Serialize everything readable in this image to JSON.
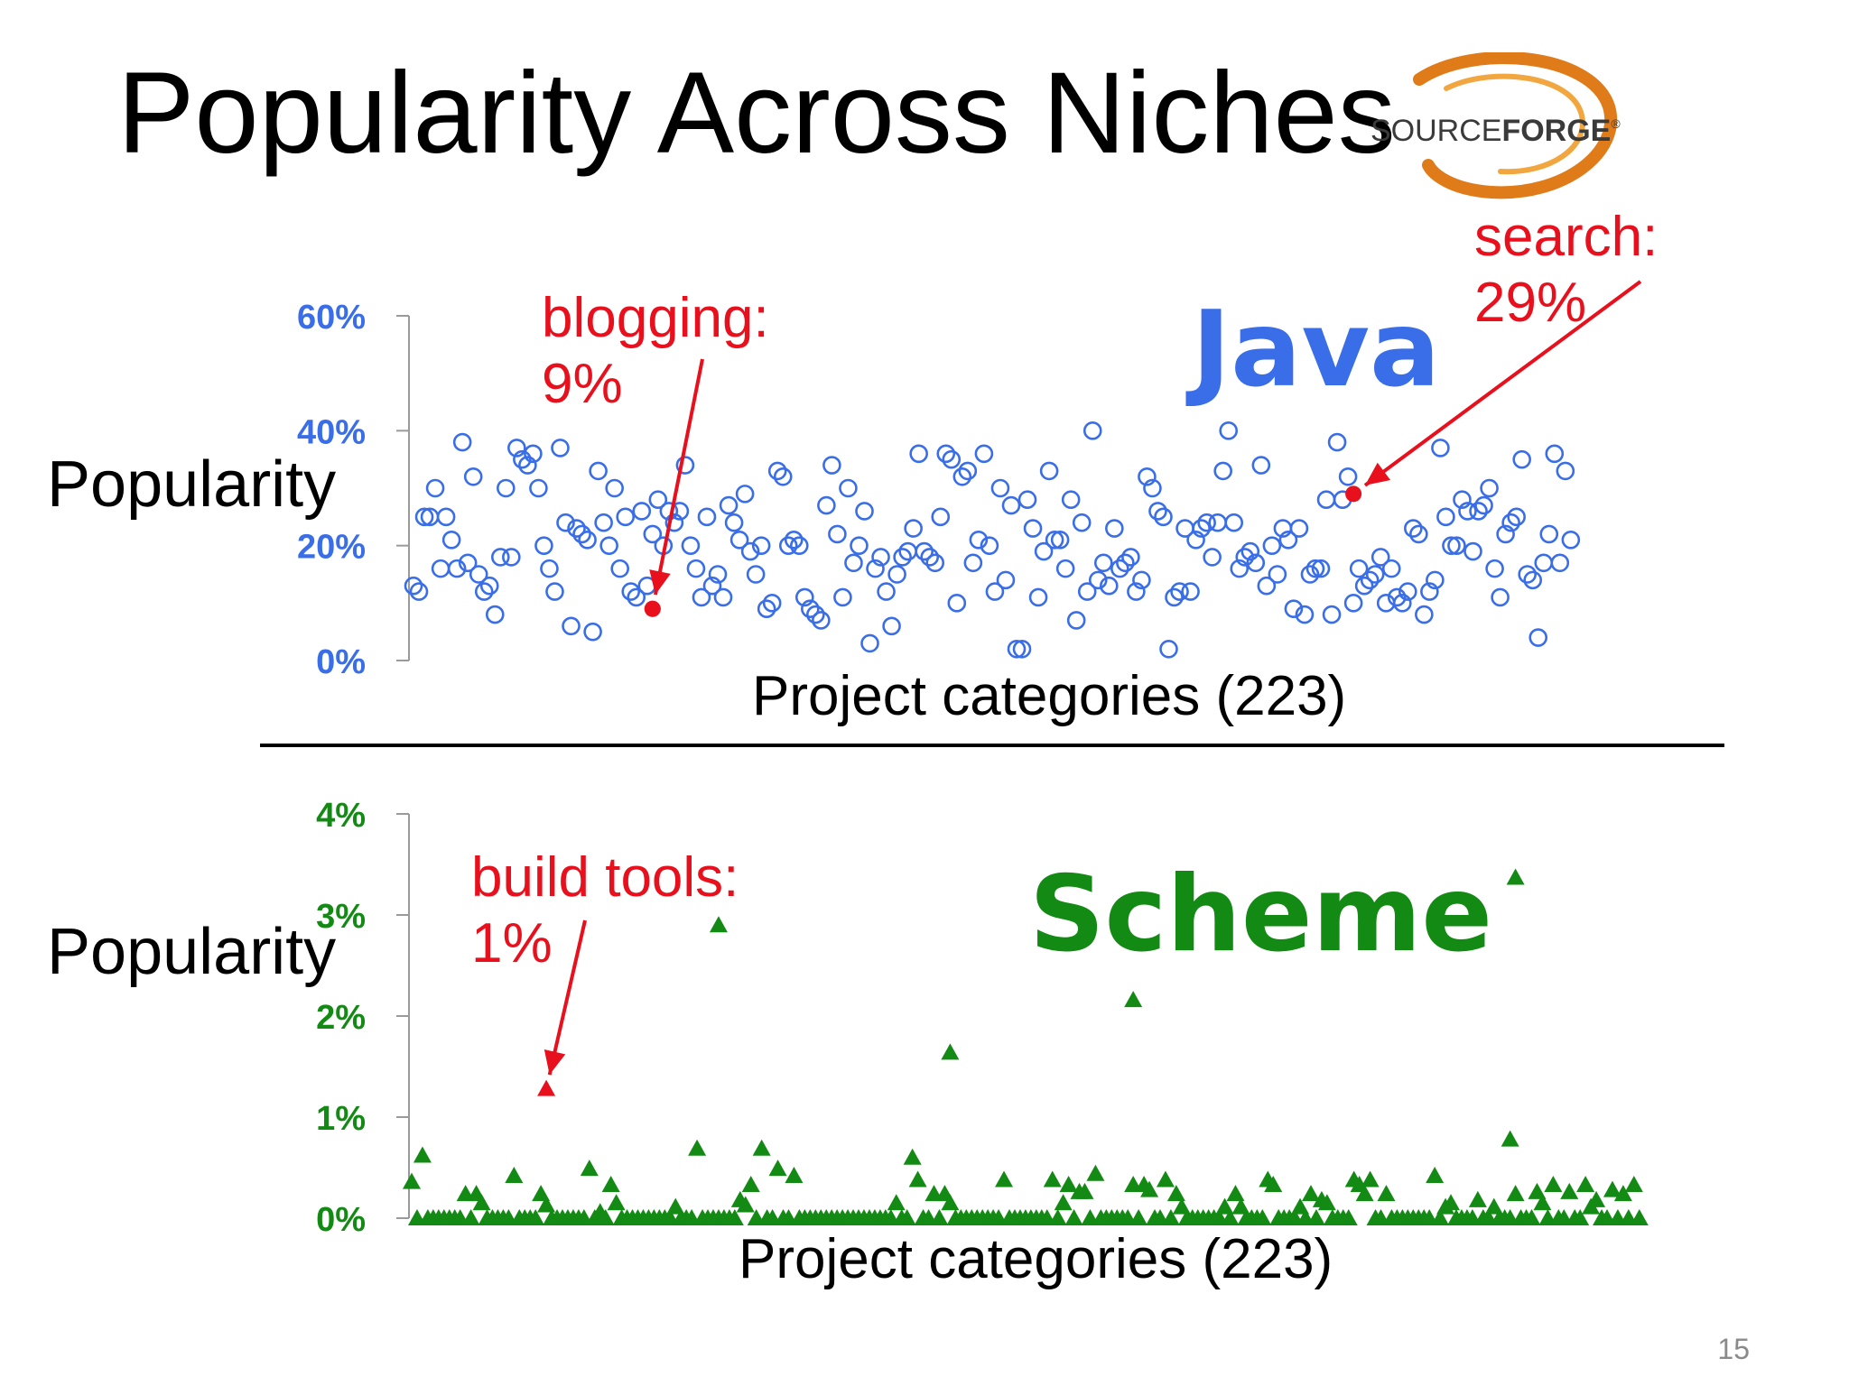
{
  "slide": {
    "title": "Popularity Across Niches",
    "logo_text": {
      "source": "SOURCE",
      "forge": "FORGE",
      "mark": "®"
    },
    "page_number": "15"
  },
  "colors": {
    "java": "#3a6ee8",
    "scheme": "#138a13",
    "highlight": "#e8101c"
  },
  "chart_data": [
    {
      "type": "scatter",
      "name": "java-panel",
      "label": "Java",
      "marker": "hollow-circle",
      "ylabel": "Popularity",
      "xlabel": "Project categories (223)",
      "ylim": [
        0,
        60
      ],
      "yticks": [
        "0%",
        "20%",
        "40%",
        "60%"
      ],
      "ytick_values": [
        0,
        20,
        40,
        60
      ],
      "n_categories": 223,
      "values": [
        13,
        12,
        25,
        25,
        30,
        16,
        25,
        21,
        16,
        38,
        17,
        32,
        15,
        12,
        13,
        8,
        18,
        30,
        18,
        37,
        35,
        34,
        36,
        30,
        20,
        16,
        12,
        37,
        24,
        6,
        23,
        22,
        21,
        5,
        33,
        24,
        20,
        30,
        16,
        25,
        12,
        11,
        26,
        13,
        22,
        28,
        20,
        26,
        24,
        26,
        34,
        20,
        16,
        11,
        25,
        13,
        15,
        11,
        27,
        24,
        21,
        29,
        19,
        15,
        20,
        9,
        10,
        33,
        32,
        20,
        21,
        20,
        11,
        9,
        8,
        7,
        27,
        34,
        22,
        11,
        30,
        17,
        20,
        26,
        3,
        16,
        18,
        12,
        6,
        15,
        18,
        19,
        23,
        36,
        19,
        18,
        17,
        25,
        36,
        35,
        10,
        32,
        33,
        17,
        21,
        36,
        20,
        12,
        30,
        14,
        27,
        2,
        2,
        28,
        23,
        11,
        19,
        33,
        21,
        21,
        16,
        28,
        7,
        24,
        12,
        40,
        14,
        17,
        13,
        23,
        16,
        17,
        18,
        12,
        14,
        32,
        30,
        26,
        25,
        2,
        11,
        12,
        23,
        12,
        21,
        23,
        24,
        18,
        24,
        33,
        40,
        24,
        16,
        18,
        19,
        17,
        34,
        13,
        20,
        15,
        23,
        21,
        9,
        23,
        8,
        15,
        16,
        16,
        28,
        8,
        38,
        28,
        32,
        10,
        16,
        13,
        14,
        15,
        18,
        10,
        16,
        11,
        10,
        12,
        23,
        22,
        8,
        12,
        14,
        37,
        25,
        20,
        20,
        28,
        26,
        19,
        26,
        27,
        30,
        16,
        11,
        22,
        24,
        25,
        35,
        15,
        14,
        4,
        17,
        22,
        36,
        17,
        33,
        21
      ],
      "points": [
        {
          "x": 44,
          "y": 9
        }
      ],
      "annotations": [
        {
          "text": "blogging:\n9%",
          "x": 44,
          "y": 9
        },
        {
          "text": "search:\n29%",
          "x": 173,
          "y": 29
        }
      ]
    },
    {
      "type": "scatter",
      "name": "scheme-panel",
      "label": "Scheme",
      "marker": "filled-triangle",
      "ylabel": "Popularity",
      "xlabel": "Project categories (223)",
      "ylim": [
        0,
        4
      ],
      "yticks": [
        "0%",
        "1%",
        "2%",
        "3%",
        "4%"
      ],
      "ytick_values": [
        0,
        1,
        2,
        3,
        4
      ],
      "n_categories": 223,
      "values": [
        0.36,
        0,
        0.62,
        0,
        0,
        0,
        0,
        0,
        0,
        0,
        0.24,
        0,
        0.24,
        0.15,
        0,
        0,
        0,
        0,
        0,
        0.42,
        0,
        0,
        0,
        0,
        0.24,
        0.13,
        0,
        0,
        0,
        0,
        0,
        0,
        0,
        0.49,
        0,
        0.06,
        0,
        0.33,
        0.15,
        0,
        0,
        0,
        0,
        0,
        0,
        0,
        0,
        0,
        0,
        0.11,
        0,
        0,
        0,
        0.69,
        0,
        0,
        0,
        0,
        0,
        0,
        0,
        0.18,
        0.13,
        0.33,
        0,
        0.69,
        0,
        0,
        0.49,
        0,
        0,
        0.42,
        0,
        0,
        0,
        0,
        0,
        0,
        0,
        0,
        0,
        0,
        0,
        0,
        0,
        0,
        0,
        0,
        0,
        0,
        0.15,
        0,
        0,
        0.6,
        0.38,
        0,
        0,
        0.24,
        0,
        0.24,
        0.15,
        0,
        0,
        0,
        0,
        0,
        0,
        0,
        0,
        0,
        0.38,
        0,
        0,
        0,
        0,
        0,
        0,
        0,
        0,
        0.38,
        0,
        0.15,
        0.33,
        0,
        0.26,
        0.26,
        0,
        0.44,
        0,
        0,
        0,
        0,
        0,
        0,
        0.33,
        0,
        0.33,
        0.28,
        0,
        0,
        0.38,
        0,
        0.24,
        0.11,
        0,
        0,
        0,
        0,
        0,
        0,
        0,
        0.11,
        0,
        0.24,
        0.11,
        0,
        0,
        0,
        0,
        0.38,
        0.33,
        0,
        0,
        0,
        0,
        0.11,
        0,
        0.24,
        0,
        0.18,
        0.15,
        0,
        0,
        0,
        0,
        0.38,
        0.33,
        0.24,
        0.38,
        0,
        0,
        0.24,
        0,
        0,
        0,
        0,
        0,
        0,
        0,
        0,
        0.42,
        0,
        0.11,
        0.15,
        0,
        0,
        0,
        0,
        0.18,
        0,
        0,
        0.11,
        0,
        0,
        0,
        0.24,
        0,
        0,
        0,
        0.26,
        0.15,
        0,
        0.33,
        0,
        0,
        0.26,
        0,
        0,
        0.33,
        0.11,
        0.18,
        0,
        0,
        0.28,
        0,
        0.24,
        0,
        0.33,
        0
      ],
      "points": [
        {
          "x": 25,
          "y": 1.28
        },
        {
          "x": 57,
          "y": 2.9
        },
        {
          "x": 100,
          "y": 1.64
        },
        {
          "x": 134,
          "y": 2.16
        },
        {
          "x": 205,
          "y": 3.37
        },
        {
          "x": 204,
          "y": 0.78
        }
      ],
      "annotations": [
        {
          "text": "build tools:\n1%",
          "x": 25,
          "y": 1.28
        }
      ]
    }
  ]
}
